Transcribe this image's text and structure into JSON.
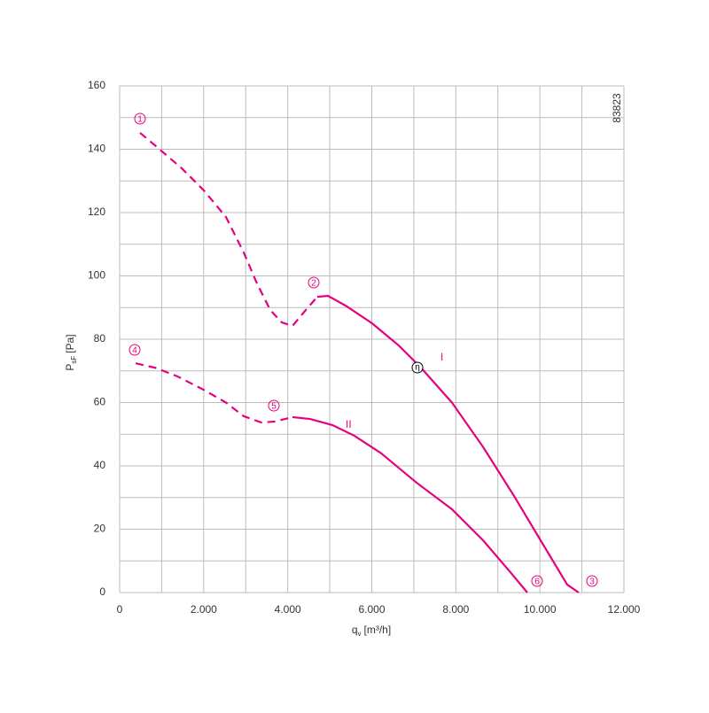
{
  "chart_data": {
    "type": "line",
    "y_label": {
      "main": "P",
      "sub": "sF",
      "unit": "[Pa]"
    },
    "x_label": {
      "main": "q",
      "sub": "v",
      "unit": "[m³/h]"
    },
    "id_label": "83823",
    "xlim": [
      0,
      12000
    ],
    "ylim": [
      0,
      160
    ],
    "xticks": [
      {
        "value": 0,
        "label": "0"
      },
      {
        "value": 2000,
        "label": "2.000"
      },
      {
        "value": 4000,
        "label": "4.000"
      },
      {
        "value": 6000,
        "label": "6.000"
      },
      {
        "value": 8000,
        "label": "8.000"
      },
      {
        "value": 10000,
        "label": "10.000"
      },
      {
        "value": 12000,
        "label": "12.000"
      }
    ],
    "yticks": [
      0,
      20,
      40,
      60,
      80,
      100,
      120,
      140,
      160
    ],
    "minor_xgrid": [
      1000,
      3000,
      5000,
      7000,
      9000,
      11000
    ],
    "minor_ygrid": [
      10,
      30,
      50,
      70,
      90,
      110,
      130,
      150
    ],
    "grid": true,
    "series": [
      {
        "color": "#e6007e",
        "dashed": true,
        "x": [
          485,
          949,
          1476,
          2003,
          2530,
          2952,
          3269,
          3585,
          3859,
          4112,
          4428,
          4703
        ],
        "values": [
          145.2,
          140,
          134,
          127,
          118.6,
          107.4,
          97.6,
          89.2,
          85.3,
          84.2,
          89.2,
          93.4
        ]
      },
      {
        "color": "#e6007e",
        "dashed": false,
        "x": [
          4703,
          4956,
          5378,
          6010,
          6643,
          7170,
          7908,
          8647,
          9385,
          10017,
          10650,
          10924
        ],
        "values": [
          93.4,
          93.7,
          90.6,
          85,
          78,
          71,
          60,
          46,
          30.5,
          16.5,
          2.5,
          0
        ]
      },
      {
        "color": "#e6007e",
        "dashed": true,
        "x": [
          380,
          844,
          1371,
          2003,
          2530,
          2952,
          3374,
          3690,
          4112
        ],
        "values": [
          72.4,
          71,
          68.3,
          64,
          60,
          55.7,
          53.7,
          54,
          55.4
        ]
      },
      {
        "color": "#e6007e",
        "dashed": false,
        "x": [
          4112,
          4534,
          5062,
          5589,
          6221,
          7065,
          7908,
          8647,
          9280,
          9701
        ],
        "values": [
          55.4,
          54.8,
          52.9,
          49.5,
          44,
          34.7,
          26.3,
          16.5,
          6.7,
          0
        ]
      }
    ],
    "markers": [
      "1",
      "2",
      "3",
      "4",
      "5",
      "6"
    ],
    "curve_labels": [
      "I",
      "II"
    ],
    "efficiency_label": "η"
  }
}
